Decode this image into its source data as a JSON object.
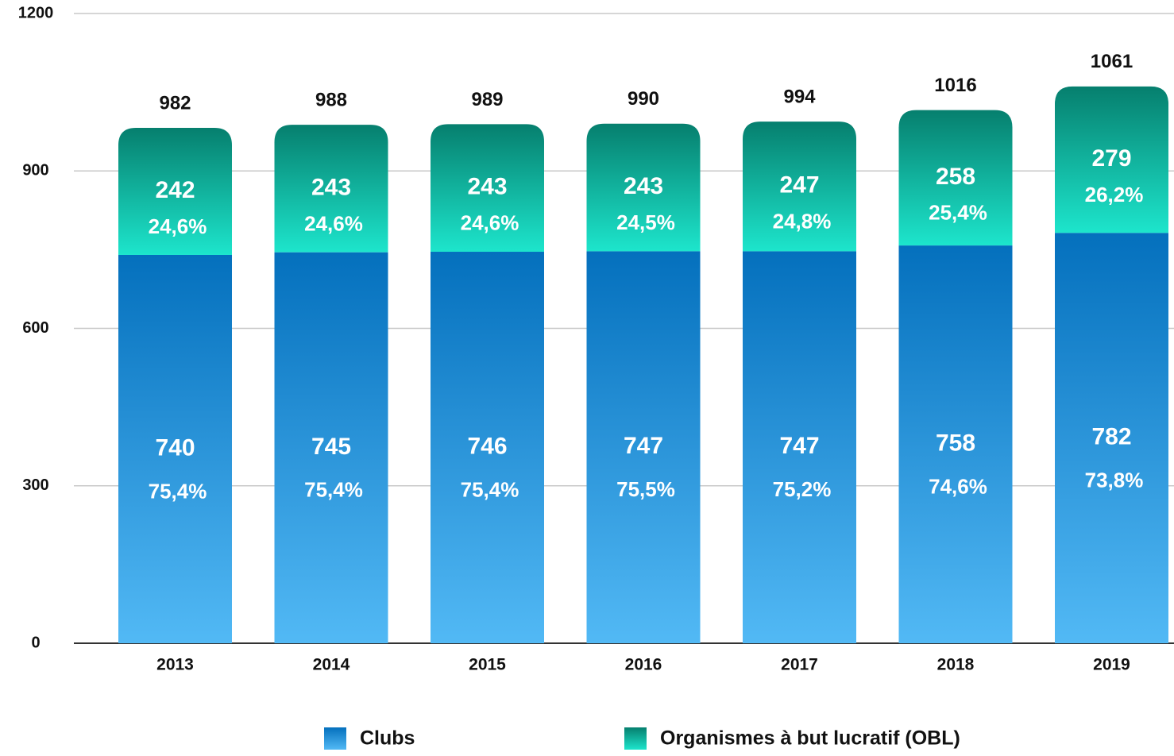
{
  "chart_data": {
    "type": "stacked_bar",
    "categories": [
      "2013",
      "2014",
      "2015",
      "2016",
      "2017",
      "2018",
      "2019"
    ],
    "series": [
      {
        "name": "Clubs",
        "color": "#0470bd",
        "gradient": [
          "#0470bd",
          "#52b9f5"
        ],
        "values": [
          740,
          745,
          746,
          747,
          747,
          758,
          782
        ],
        "percentages": [
          75.4,
          75.4,
          75.4,
          75.5,
          75.2,
          74.6,
          73.8
        ],
        "percentage_labels": [
          "75,4%",
          "75,4%",
          "75,4%",
          "75,5%",
          "75,2%",
          "74,6%",
          "73,8%"
        ]
      },
      {
        "name": "Organismes à but lucratif (OBL)",
        "color": "#067f6e",
        "gradient": [
          "#067f6e",
          "#1de5cc"
        ],
        "values": [
          242,
          243,
          243,
          243,
          247,
          258,
          279
        ],
        "percentages": [
          24.6,
          24.6,
          24.6,
          24.5,
          24.8,
          25.4,
          26.2
        ],
        "percentage_labels": [
          "24,6%",
          "24,6%",
          "24,6%",
          "24,5%",
          "24,8%",
          "25,4%",
          "26,2%"
        ]
      }
    ],
    "totals": [
      982,
      988,
      989,
      990,
      994,
      1016,
      1061
    ],
    "ylim": [
      0,
      1200
    ],
    "yticks": [
      0,
      300,
      600,
      900,
      1200
    ],
    "grid": true,
    "legend": "bottom"
  }
}
